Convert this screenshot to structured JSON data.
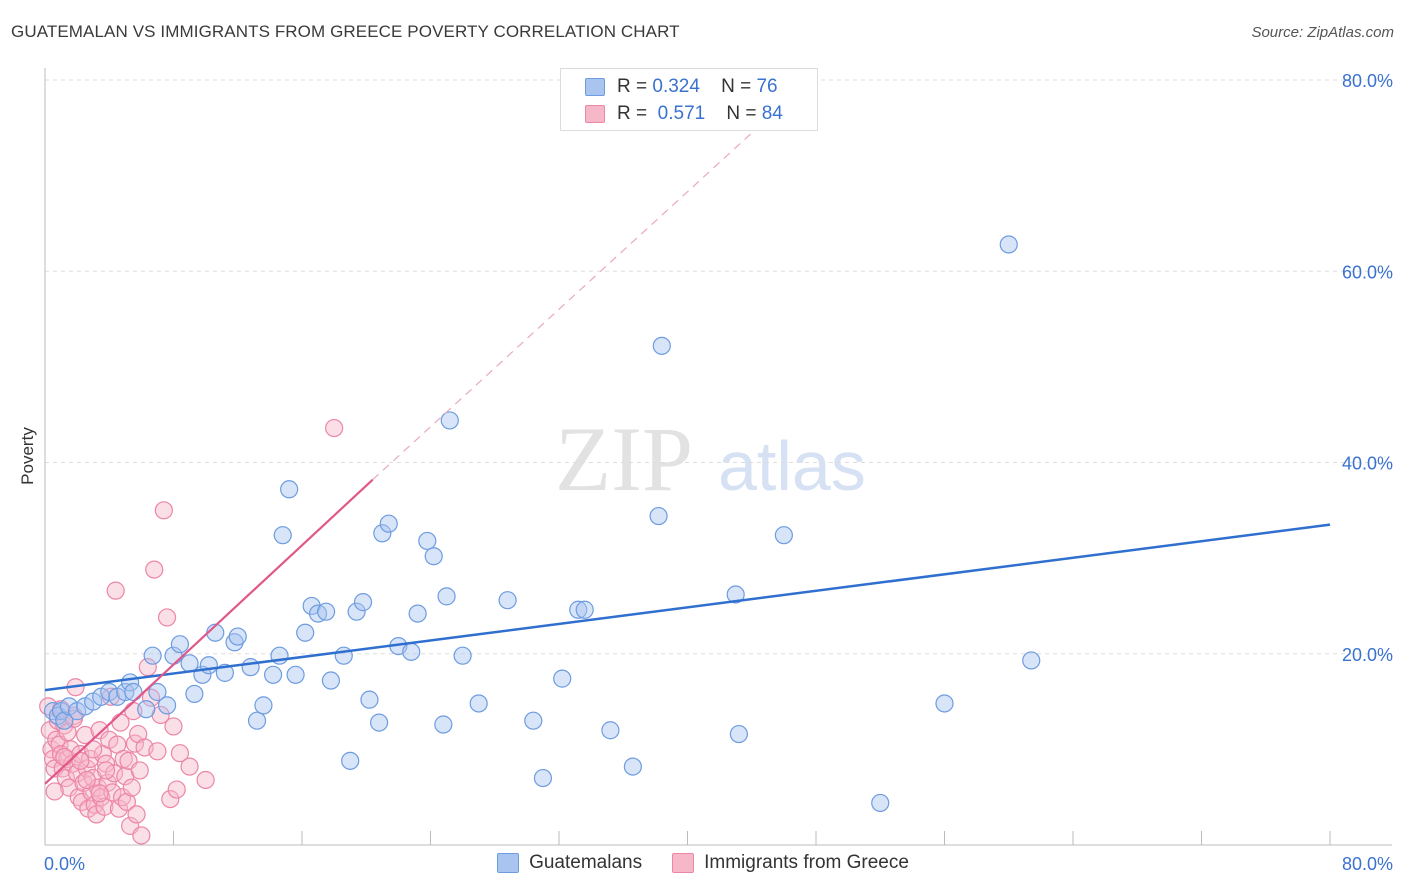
{
  "title": "GUATEMALAN VS IMMIGRANTS FROM GREECE POVERTY CORRELATION CHART",
  "source": "Source: ZipAtlas.com",
  "watermark": {
    "zip": "ZIP",
    "atlas": "atlas"
  },
  "legend": {
    "rows": [
      {
        "r_label": "R =",
        "r_value": "0.324",
        "n_label": "N =",
        "n_value": "76"
      },
      {
        "r_label": "R =",
        "r_value": "0.571",
        "n_label": "N =",
        "n_value": "84"
      }
    ]
  },
  "colors": {
    "blue_fill": "#a8c4ef",
    "blue_stroke": "#6d9ce0",
    "blue_line": "#2f6fcf",
    "pink_fill": "#f6b7c9",
    "pink_stroke": "#ec86a6",
    "pink_line": "#e0588a",
    "grid": "#dddddd",
    "axis_text": "#3a72d0"
  },
  "chart_data": {
    "type": "scatter",
    "title": "GUATEMALAN VS IMMIGRANTS FROM GREECE POVERTY CORRELATION CHART",
    "xlabel": "",
    "ylabel": "Poverty",
    "xlim": [
      0,
      80
    ],
    "ylim": [
      0,
      80
    ],
    "x_tick_labels": [
      "0.0%",
      "80.0%"
    ],
    "y_tick_labels": [
      "20.0%",
      "40.0%",
      "60.0%",
      "80.0%"
    ],
    "y_ticks": [
      20,
      40,
      60,
      80
    ],
    "series": [
      {
        "name": "Guatemalans",
        "r": 0.324,
        "n": 76,
        "trend": {
          "x0": 0,
          "y0": 16.2,
          "x1": 80,
          "y1": 33.5
        },
        "points": [
          [
            0.5,
            14
          ],
          [
            0.8,
            13.5
          ],
          [
            1,
            14
          ],
          [
            1.2,
            13
          ],
          [
            1.5,
            14.5
          ],
          [
            2,
            14
          ],
          [
            2.5,
            14.5
          ],
          [
            3,
            15
          ],
          [
            3.5,
            15.5
          ],
          [
            4,
            16
          ],
          [
            4.5,
            15.5
          ],
          [
            5,
            16
          ],
          [
            5.3,
            17
          ],
          [
            5.5,
            16
          ],
          [
            6.3,
            14.2
          ],
          [
            6.7,
            19.8
          ],
          [
            7,
            16
          ],
          [
            7.6,
            14.6
          ],
          [
            8,
            19.8
          ],
          [
            8.4,
            21
          ],
          [
            9,
            19
          ],
          [
            9.3,
            15.8
          ],
          [
            9.8,
            17.8
          ],
          [
            10.2,
            18.8
          ],
          [
            10.6,
            22.2
          ],
          [
            11.2,
            18
          ],
          [
            11.8,
            21.2
          ],
          [
            12,
            21.8
          ],
          [
            12.8,
            18.6
          ],
          [
            13.2,
            13
          ],
          [
            13.6,
            14.6
          ],
          [
            14.2,
            17.8
          ],
          [
            14.6,
            19.8
          ],
          [
            14.8,
            32.4
          ],
          [
            15.2,
            37.2
          ],
          [
            15.6,
            17.8
          ],
          [
            16.2,
            22.2
          ],
          [
            16.6,
            25
          ],
          [
            17,
            24.2
          ],
          [
            17.5,
            24.4
          ],
          [
            17.8,
            17.2
          ],
          [
            18.6,
            19.8
          ],
          [
            19,
            8.8
          ],
          [
            19.4,
            24.4
          ],
          [
            19.8,
            25.4
          ],
          [
            20.2,
            15.2
          ],
          [
            20.8,
            12.8
          ],
          [
            21,
            32.6
          ],
          [
            21.4,
            33.6
          ],
          [
            22,
            20.8
          ],
          [
            22.8,
            20.2
          ],
          [
            23.2,
            24.2
          ],
          [
            23.8,
            31.8
          ],
          [
            24.2,
            30.2
          ],
          [
            24.8,
            12.6
          ],
          [
            25,
            26
          ],
          [
            25.2,
            44.4
          ],
          [
            26,
            19.8
          ],
          [
            27,
            14.8
          ],
          [
            28.8,
            25.6
          ],
          [
            30.4,
            13
          ],
          [
            31,
            7
          ],
          [
            32.2,
            17.4
          ],
          [
            33.2,
            24.6
          ],
          [
            33.6,
            24.6
          ],
          [
            35.2,
            12
          ],
          [
            36.6,
            8.2
          ],
          [
            38.2,
            34.4
          ],
          [
            38.4,
            52.2
          ],
          [
            43,
            26.2
          ],
          [
            43.2,
            11.6
          ],
          [
            46,
            32.4
          ],
          [
            52,
            4.4
          ],
          [
            56,
            14.8
          ],
          [
            60,
            62.8
          ],
          [
            61.4,
            19.3
          ]
        ]
      },
      {
        "name": "Immigrants from Greece",
        "r": 0.571,
        "n": 84,
        "trend": {
          "x0": 0,
          "y0": 6.4,
          "x1": 20.4,
          "y1": 38.2
        },
        "trend_dashed": {
          "x0": 20.4,
          "y0": 38.2,
          "x1": 45,
          "y1": 76
        },
        "points": [
          [
            0.2,
            14.5
          ],
          [
            0.3,
            12
          ],
          [
            0.4,
            10
          ],
          [
            0.5,
            9
          ],
          [
            0.6,
            8
          ],
          [
            0.7,
            11
          ],
          [
            0.8,
            13
          ],
          [
            0.9,
            10.5
          ],
          [
            1,
            9.5
          ],
          [
            1.1,
            8
          ],
          [
            1.2,
            12.5
          ],
          [
            1.3,
            7
          ],
          [
            1.4,
            9
          ],
          [
            1.5,
            6
          ],
          [
            1.6,
            10
          ],
          [
            1.7,
            8.5
          ],
          [
            1.8,
            13.5
          ],
          [
            1.9,
            16.5
          ],
          [
            2,
            7.5
          ],
          [
            2.1,
            5
          ],
          [
            2.2,
            9.5
          ],
          [
            2.3,
            4.5
          ],
          [
            2.4,
            6.5
          ],
          [
            2.5,
            11.5
          ],
          [
            2.6,
            8
          ],
          [
            2.7,
            3.8
          ],
          [
            2.8,
            9
          ],
          [
            2.9,
            5.5
          ],
          [
            3,
            7
          ],
          [
            3.1,
            4.2
          ],
          [
            3.2,
            3.2
          ],
          [
            3.3,
            6
          ],
          [
            3.4,
            12
          ],
          [
            3.5,
            5
          ],
          [
            3.6,
            9.5
          ],
          [
            3.7,
            4
          ],
          [
            3.8,
            8.5
          ],
          [
            3.9,
            6.5
          ],
          [
            4,
            11
          ],
          [
            4.1,
            15.5
          ],
          [
            4.2,
            5.5
          ],
          [
            4.3,
            7.5
          ],
          [
            4.4,
            26.6
          ],
          [
            4.5,
            10.5
          ],
          [
            4.6,
            3.8
          ],
          [
            4.7,
            12.8
          ],
          [
            4.8,
            5
          ],
          [
            4.9,
            9
          ],
          [
            5,
            7.2
          ],
          [
            5.1,
            4.5
          ],
          [
            5.2,
            8.8
          ],
          [
            5.3,
            2
          ],
          [
            5.4,
            6
          ],
          [
            5.5,
            14
          ],
          [
            5.6,
            10.6
          ],
          [
            5.7,
            3.2
          ],
          [
            5.8,
            11.6
          ],
          [
            5.9,
            7.8
          ],
          [
            6,
            1
          ],
          [
            6.2,
            10.2
          ],
          [
            6.4,
            18.6
          ],
          [
            6.6,
            15.4
          ],
          [
            6.8,
            28.8
          ],
          [
            7,
            9.8
          ],
          [
            7.2,
            13.6
          ],
          [
            7.4,
            35
          ],
          [
            7.6,
            23.8
          ],
          [
            7.8,
            4.8
          ],
          [
            8,
            12.4
          ],
          [
            8.2,
            5.8
          ],
          [
            8.4,
            9.6
          ],
          [
            9,
            8.2
          ],
          [
            0.6,
            5.6
          ],
          [
            1,
            14.2
          ],
          [
            1.4,
            11.8
          ],
          [
            1.8,
            13.2
          ],
          [
            2.2,
            8.8
          ],
          [
            2.6,
            6.8
          ],
          [
            3,
            10
          ],
          [
            3.4,
            5.4
          ],
          [
            3.8,
            7.8
          ],
          [
            10,
            6.8
          ],
          [
            18,
            43.6
          ],
          [
            1.2,
            9.2
          ]
        ]
      }
    ]
  }
}
